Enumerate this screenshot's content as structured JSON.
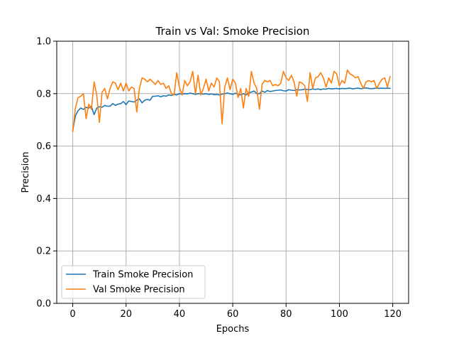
{
  "chart_data": {
    "type": "line",
    "title": "Train vs Val: Smoke Precision",
    "xlabel": "Epochs",
    "ylabel": "Precision",
    "xlim": [
      -6,
      125.95
    ],
    "ylim": [
      0.0,
      1.0
    ],
    "xticks": [
      0,
      20,
      40,
      60,
      80,
      100,
      120
    ],
    "yticks": [
      0.0,
      0.2,
      0.4,
      0.6,
      0.8,
      1.0
    ],
    "xtick_labels": [
      "0",
      "20",
      "40",
      "60",
      "80",
      "100",
      "120"
    ],
    "ytick_labels": [
      "0.0",
      "0.2",
      "0.4",
      "0.6",
      "0.8",
      "1.0"
    ],
    "grid": true,
    "legend_position": "lower-left",
    "series": [
      {
        "name": "Train Smoke Precision",
        "color": "#1f77b4",
        "values": [
          0.66,
          0.715,
          0.735,
          0.745,
          0.74,
          0.748,
          0.745,
          0.752,
          0.72,
          0.745,
          0.75,
          0.748,
          0.755,
          0.752,
          0.752,
          0.762,
          0.755,
          0.76,
          0.762,
          0.77,
          0.758,
          0.772,
          0.77,
          0.768,
          0.775,
          0.78,
          0.765,
          0.775,
          0.778,
          0.775,
          0.79,
          0.79,
          0.792,
          0.788,
          0.792,
          0.79,
          0.795,
          0.793,
          0.797,
          0.795,
          0.8,
          0.798,
          0.8,
          0.799,
          0.802,
          0.8,
          0.797,
          0.8,
          0.8,
          0.798,
          0.8,
          0.797,
          0.799,
          0.796,
          0.797,
          0.795,
          0.798,
          0.8,
          0.802,
          0.8,
          0.797,
          0.802,
          0.797,
          0.795,
          0.8,
          0.795,
          0.803,
          0.806,
          0.81,
          0.8,
          0.8,
          0.81,
          0.805,
          0.812,
          0.808,
          0.81,
          0.812,
          0.813,
          0.814,
          0.811,
          0.81,
          0.815,
          0.813,
          0.812,
          0.815,
          0.814,
          0.815,
          0.817,
          0.816,
          0.815,
          0.818,
          0.816,
          0.818,
          0.815,
          0.818,
          0.817,
          0.82,
          0.818,
          0.819,
          0.82,
          0.818,
          0.82,
          0.819,
          0.82,
          0.821,
          0.818,
          0.82,
          0.821,
          0.819,
          0.82,
          0.822,
          0.82,
          0.819,
          0.82,
          0.821,
          0.82,
          0.821,
          0.82,
          0.821,
          0.82
        ]
      },
      {
        "name": "Val Smoke Precision",
        "color": "#ff7f0e",
        "values": [
          0.655,
          0.745,
          0.785,
          0.79,
          0.8,
          0.705,
          0.76,
          0.74,
          0.845,
          0.795,
          0.69,
          0.805,
          0.82,
          0.78,
          0.82,
          0.845,
          0.84,
          0.815,
          0.84,
          0.81,
          0.84,
          0.81,
          0.825,
          0.82,
          0.73,
          0.82,
          0.86,
          0.855,
          0.845,
          0.855,
          0.845,
          0.835,
          0.85,
          0.835,
          0.84,
          0.82,
          0.83,
          0.8,
          0.795,
          0.88,
          0.825,
          0.795,
          0.85,
          0.83,
          0.845,
          0.885,
          0.8,
          0.87,
          0.795,
          0.82,
          0.855,
          0.81,
          0.84,
          0.825,
          0.86,
          0.845,
          0.685,
          0.825,
          0.86,
          0.815,
          0.855,
          0.84,
          0.785,
          0.82,
          0.745,
          0.82,
          0.79,
          0.885,
          0.84,
          0.82,
          0.74,
          0.835,
          0.85,
          0.845,
          0.85,
          0.83,
          0.835,
          0.83,
          0.84,
          0.885,
          0.86,
          0.85,
          0.87,
          0.845,
          0.79,
          0.845,
          0.84,
          0.83,
          0.77,
          0.88,
          0.82,
          0.86,
          0.865,
          0.88,
          0.86,
          0.825,
          0.86,
          0.84,
          0.885,
          0.875,
          0.83,
          0.85,
          0.84,
          0.89,
          0.875,
          0.87,
          0.86,
          0.865,
          0.84,
          0.82,
          0.845,
          0.85,
          0.845,
          0.85,
          0.82,
          0.84,
          0.855,
          0.86,
          0.825,
          0.865
        ]
      }
    ]
  }
}
